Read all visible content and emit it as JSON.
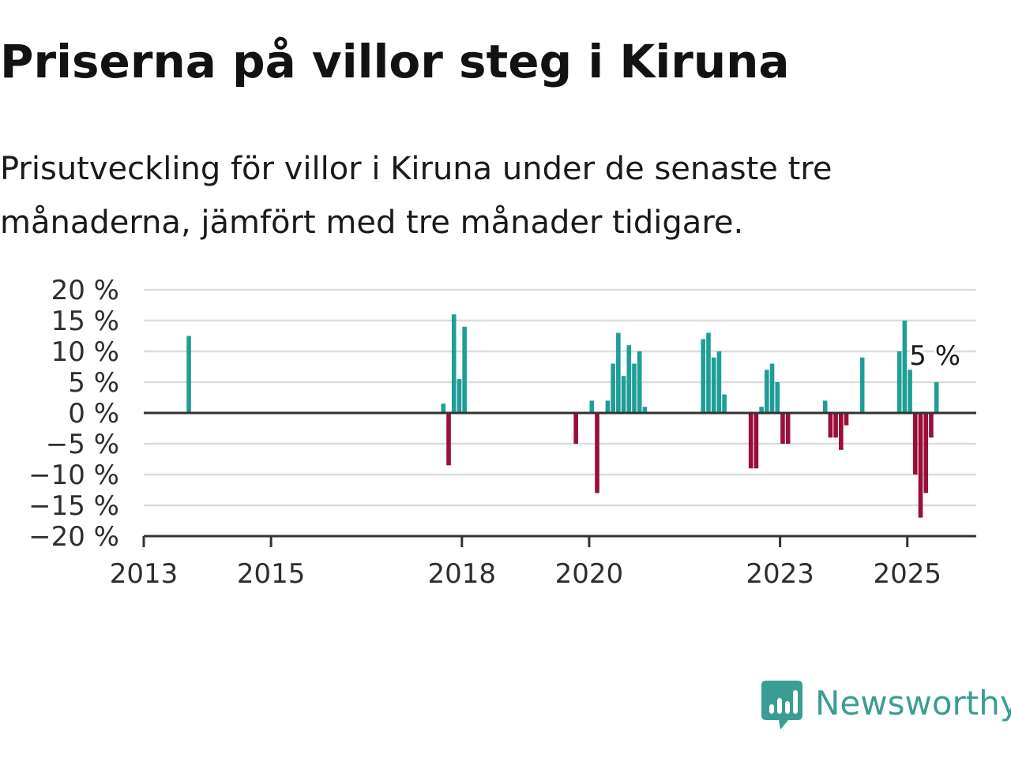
{
  "title": "Priserna på villor steg i Kiruna",
  "subtitle": "Prisutveckling för villor i Kiruna under de senaste tre månaderna, jämfört med tre månader tidigare.",
  "brand": {
    "name": "Newsworthy",
    "color": "#3a9d94"
  },
  "chart_data": {
    "type": "bar",
    "title": "Priserna på villor steg i Kiruna",
    "subtitle": "Prisutveckling för villor i Kiruna under de senaste tre månaderna, jämfört med tre månader tidigare.",
    "x_axis_type": "time (monthly)",
    "x_range": [
      "2013-01",
      "2026-02"
    ],
    "x_ticks": [
      "2013",
      "2015",
      "2018",
      "2020",
      "2023",
      "2025"
    ],
    "y_range": [
      -20,
      20
    ],
    "y_unit": "%",
    "y_ticks": [
      "20 %",
      "15 %",
      "10 %",
      "5 %",
      "0 %",
      "−5 %",
      "−10 %",
      "−15 %",
      "−20 %"
    ],
    "grid": true,
    "positive_color": "#1f9e97",
    "negative_color": "#9a0e3a",
    "series": [
      {
        "values": [
          {
            "x": "2013-09",
            "y": 12.5
          },
          {
            "x": "2017-09",
            "y": 1.5
          },
          {
            "x": "2017-10",
            "y": -8.5
          },
          {
            "x": "2017-11",
            "y": 16
          },
          {
            "x": "2017-12",
            "y": 5.5
          },
          {
            "x": "2018-01",
            "y": 14
          },
          {
            "x": "2019-10",
            "y": -5
          },
          {
            "x": "2020-01",
            "y": 2
          },
          {
            "x": "2020-02",
            "y": -13
          },
          {
            "x": "2020-04",
            "y": 2
          },
          {
            "x": "2020-05",
            "y": 8
          },
          {
            "x": "2020-06",
            "y": 13
          },
          {
            "x": "2020-07",
            "y": 6
          },
          {
            "x": "2020-08",
            "y": 11
          },
          {
            "x": "2020-09",
            "y": 8
          },
          {
            "x": "2020-10",
            "y": 10
          },
          {
            "x": "2020-11",
            "y": 1
          },
          {
            "x": "2021-10",
            "y": 12
          },
          {
            "x": "2021-11",
            "y": 13
          },
          {
            "x": "2021-12",
            "y": 9
          },
          {
            "x": "2022-01",
            "y": 10
          },
          {
            "x": "2022-02",
            "y": 3
          },
          {
            "x": "2022-07",
            "y": -9
          },
          {
            "x": "2022-08",
            "y": -9
          },
          {
            "x": "2022-09",
            "y": 1
          },
          {
            "x": "2022-10",
            "y": 7
          },
          {
            "x": "2022-11",
            "y": 8
          },
          {
            "x": "2022-12",
            "y": 5
          },
          {
            "x": "2023-01",
            "y": -5
          },
          {
            "x": "2023-02",
            "y": -5
          },
          {
            "x": "2023-09",
            "y": 2
          },
          {
            "x": "2023-10",
            "y": -4
          },
          {
            "x": "2023-11",
            "y": -4
          },
          {
            "x": "2023-12",
            "y": -6
          },
          {
            "x": "2024-01",
            "y": -2
          },
          {
            "x": "2024-04",
            "y": 9
          },
          {
            "x": "2024-11",
            "y": 10
          },
          {
            "x": "2024-12",
            "y": 15
          },
          {
            "x": "2025-01",
            "y": 7
          },
          {
            "x": "2025-02",
            "y": -10
          },
          {
            "x": "2025-03",
            "y": -17
          },
          {
            "x": "2025-04",
            "y": -13
          },
          {
            "x": "2025-05",
            "y": -4
          },
          {
            "x": "2025-06",
            "y": 5
          }
        ]
      }
    ],
    "annotation": {
      "x": "2025-06",
      "y": 5,
      "text": "5 %"
    }
  }
}
